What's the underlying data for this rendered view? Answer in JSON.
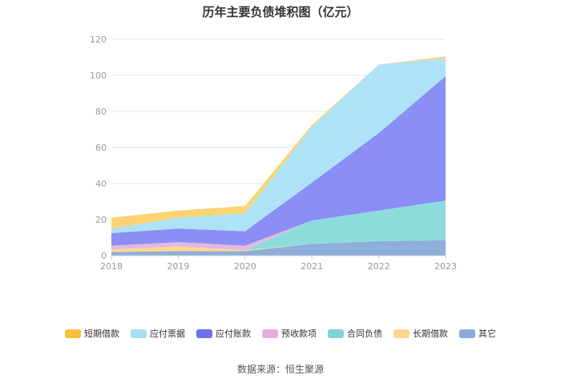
{
  "title": "历年主要负债堆积图（亿元）",
  "source": "数据来源：恒生聚源",
  "chart_data": {
    "type": "area",
    "stacked": true,
    "title": "历年主要负债堆积图（亿元）",
    "x": [
      "2018",
      "2019",
      "2020",
      "2021",
      "2022",
      "2023"
    ],
    "ylim": [
      0,
      120
    ],
    "yticks": [
      "0",
      "20",
      "40",
      "60",
      "80",
      "100",
      "120"
    ],
    "grid": true,
    "legend_position": "bottom",
    "series": [
      {
        "name": "其它",
        "color": "#8eaedc",
        "values": [
          2.0,
          2.5,
          2.5,
          6.5,
          8.0,
          8.5
        ]
      },
      {
        "name": "长期借款",
        "color": "#fdd98b",
        "values": [
          1.5,
          2.5,
          0.5,
          0.0,
          0.0,
          0.0
        ]
      },
      {
        "name": "合同负债",
        "color": "#8ddcdc",
        "values": [
          0.0,
          0.0,
          0.0,
          13.0,
          17.0,
          22.0
        ]
      },
      {
        "name": "预收款项",
        "color": "#e3b8e0",
        "values": [
          2.0,
          2.5,
          2.5,
          0.0,
          0.0,
          0.0
        ]
      },
      {
        "name": "应付账款",
        "color": "#8a8ef5",
        "values": [
          7.0,
          7.5,
          8.0,
          21.0,
          43.0,
          69.0
        ]
      },
      {
        "name": "应付票据",
        "color": "#aee3f7",
        "values": [
          2.5,
          6.0,
          10.0,
          31.0,
          38.0,
          10.0
        ]
      },
      {
        "name": "短期借款",
        "color": "#fbd373",
        "values": [
          6.0,
          4.0,
          4.0,
          1.0,
          0.0,
          1.0
        ]
      }
    ],
    "legend_order": [
      "短期借款",
      "应付票据",
      "应付账款",
      "预收款项",
      "合同负债",
      "长期借款",
      "其它"
    ],
    "legend_colors": {
      "短期借款": "#fac03d",
      "应付票据": "#a5dff5",
      "应付账款": "#6c70ea",
      "预收款项": "#e3b0dc",
      "合同负债": "#7dd3d3",
      "长期借款": "#fdd88a",
      "其它": "#8aaad8"
    }
  }
}
